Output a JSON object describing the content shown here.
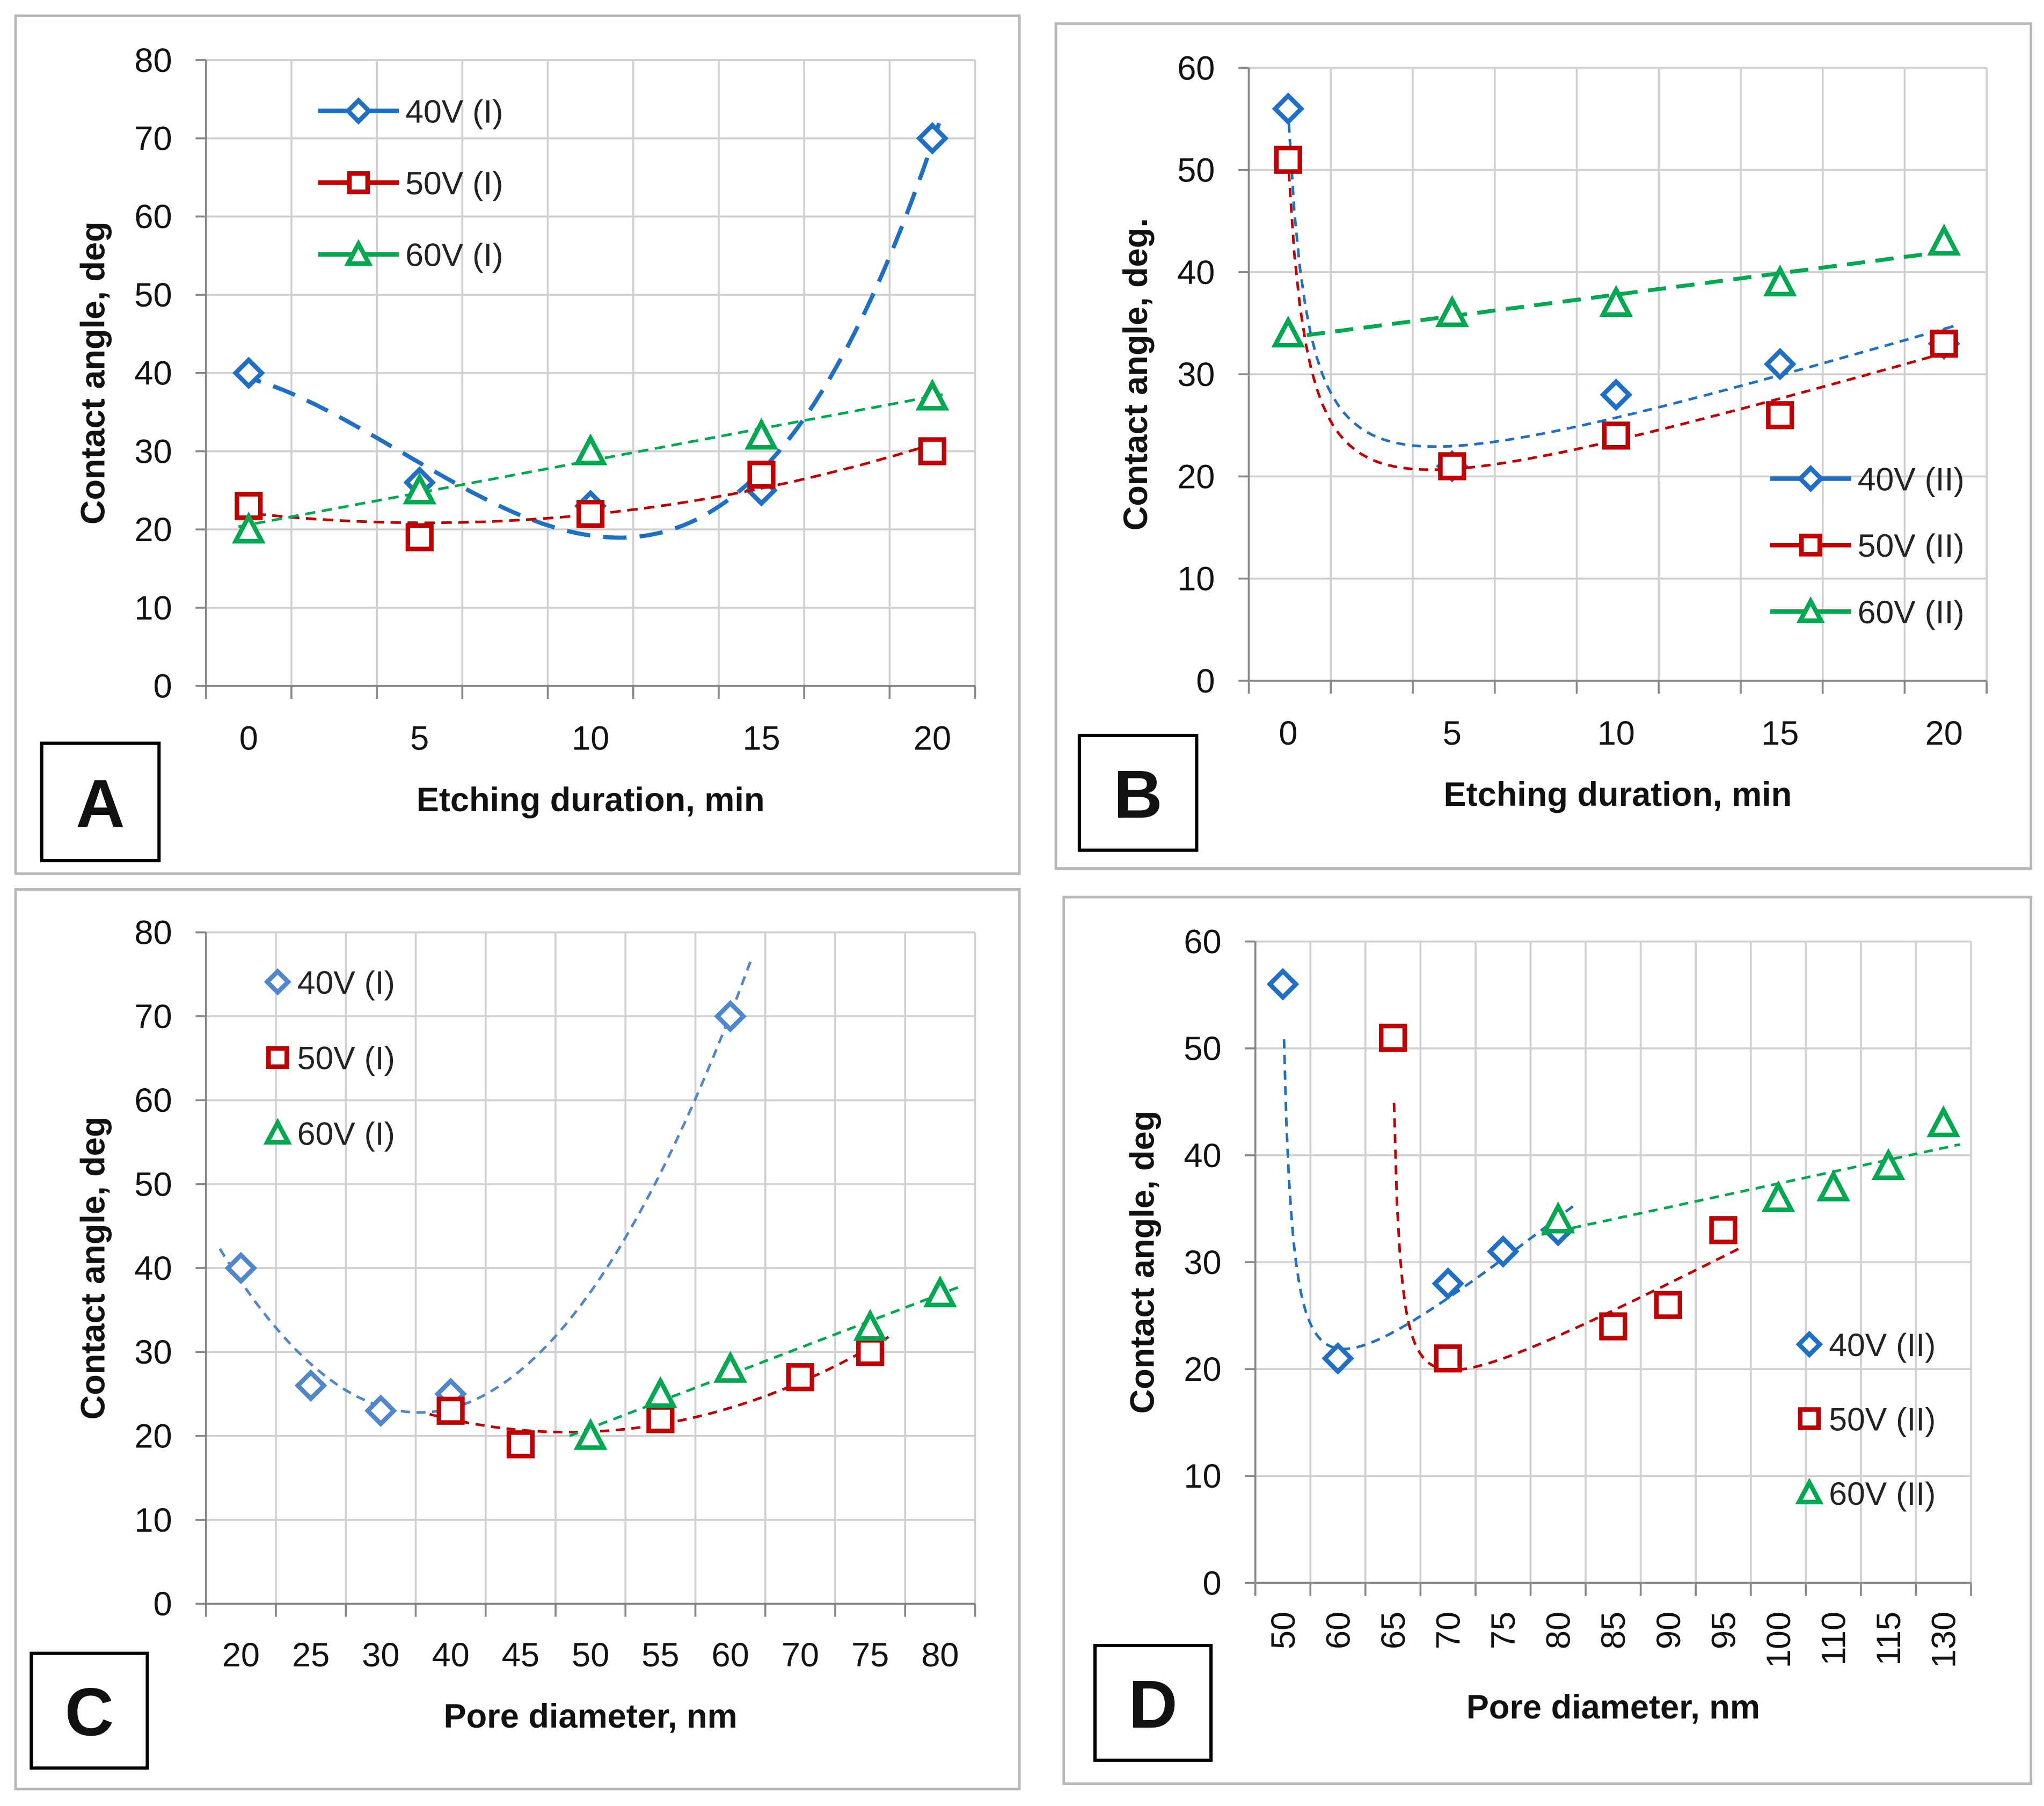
{
  "chart_data": [
    {
      "panel": "A",
      "type": "scatter",
      "x_type": "numeric",
      "xlabel": "Etching duration, min",
      "ylabel": "Contact angle, deg",
      "xlim": [
        -1.25,
        21.25
      ],
      "ylim": [
        0,
        80
      ],
      "x_ticks": [
        0,
        5,
        10,
        15,
        20
      ],
      "y_ticks": [
        0,
        10,
        20,
        30,
        40,
        50,
        60,
        70,
        80
      ],
      "grid": true,
      "legend_position": "top-left",
      "series": [
        {
          "name": "40V (I)",
          "color": "#1f6fc5",
          "marker": "diamond",
          "x": [
            0,
            5,
            10,
            15,
            20
          ],
          "y": [
            40,
            26,
            23,
            25,
            70
          ],
          "trend": {
            "type": "poly",
            "degree": 3
          }
        },
        {
          "name": "50V (I)",
          "color": "#c00000",
          "marker": "square",
          "x": [
            0,
            5,
            10,
            15,
            20
          ],
          "y": [
            23,
            19,
            22,
            27,
            30
          ],
          "trend": {
            "type": "poly",
            "degree": 2
          }
        },
        {
          "name": "60V (I)",
          "color": "#00a84f",
          "marker": "triangle",
          "x": [
            0,
            5,
            10,
            15,
            20
          ],
          "y": [
            20,
            25,
            30,
            32,
            37
          ],
          "trend": {
            "type": "poly",
            "degree": 1
          }
        }
      ]
    },
    {
      "panel": "B",
      "type": "scatter",
      "x_type": "numeric",
      "xlabel": "Etching duration, min",
      "ylabel": "Contact angle, deg.",
      "xlim": [
        -1.2,
        21.3
      ],
      "ylim": [
        0,
        60
      ],
      "x_ticks": [
        0,
        5,
        10,
        15,
        20
      ],
      "y_ticks": [
        0,
        10,
        20,
        30,
        40,
        50,
        60
      ],
      "grid": true,
      "legend_position": "bottom-right",
      "series": [
        {
          "name": "40V (II)",
          "color": "#1f6fc5",
          "marker": "diamond",
          "x": [
            0,
            5,
            10,
            15,
            20
          ],
          "y": [
            56,
            21,
            28,
            31,
            33
          ],
          "trend": {
            "type": "hyperbolic",
            "shift": 0.6
          }
        },
        {
          "name": "50V (II)",
          "color": "#c00000",
          "marker": "square",
          "x": [
            0,
            5,
            10,
            15,
            20
          ],
          "y": [
            51,
            21,
            24,
            26,
            33
          ],
          "trend": {
            "type": "hyperbolic",
            "shift": 0.6
          }
        },
        {
          "name": "60V (II)",
          "color": "#00a84f",
          "marker": "triangle",
          "x": [
            0,
            5,
            10,
            15,
            20
          ],
          "y": [
            34,
            36,
            37,
            39,
            43
          ],
          "trend": {
            "type": "poly",
            "degree": 1
          }
        }
      ]
    },
    {
      "panel": "C",
      "type": "scatter",
      "x_type": "category",
      "xlabel": "Pore diameter, nm",
      "ylabel": "Contact angle, deg",
      "categories": [
        "20",
        "25",
        "30",
        "40",
        "45",
        "50",
        "55",
        "60",
        "70",
        "75",
        "80"
      ],
      "ylim": [
        0,
        80
      ],
      "y_ticks": [
        0,
        10,
        20,
        30,
        40,
        50,
        60,
        70,
        80
      ],
      "grid": true,
      "legend_position": "top-left",
      "series": [
        {
          "name": "40V (I)",
          "color": "#4f86cc",
          "marker": "diamond",
          "x": [
            "20",
            "25",
            "30",
            "40",
            "60"
          ],
          "y": [
            40,
            26,
            23,
            25,
            70
          ],
          "trend": {
            "type": "poly",
            "degree": 2
          }
        },
        {
          "name": "50V (I)",
          "color": "#c00000",
          "marker": "square",
          "x": [
            "40",
            "45",
            "55",
            "70",
            "75"
          ],
          "y": [
            23,
            19,
            22,
            27,
            30
          ],
          "trend": {
            "type": "poly",
            "degree": 2
          }
        },
        {
          "name": "60V (I)",
          "color": "#00a84f",
          "marker": "triangle",
          "x": [
            "50",
            "55",
            "60",
            "75",
            "80"
          ],
          "y": [
            20,
            25,
            28,
            33,
            37
          ],
          "trend": {
            "type": "poly",
            "degree": 1
          }
        }
      ]
    },
    {
      "panel": "D",
      "type": "scatter",
      "x_type": "category",
      "xlabel": "Pore diameter, nm",
      "ylabel": "Contact angle, deg",
      "categories": [
        "50",
        "60",
        "65",
        "70",
        "75",
        "80",
        "85",
        "90",
        "95",
        "100",
        "110",
        "115",
        "130"
      ],
      "ylim": [
        0,
        60
      ],
      "y_ticks": [
        0,
        10,
        20,
        30,
        40,
        50,
        60
      ],
      "grid": true,
      "legend_position": "bottom-right",
      "series": [
        {
          "name": "40V (II)",
          "color": "#1f6fc5",
          "marker": "diamond",
          "x": [
            "50",
            "60",
            "70",
            "75",
            "80"
          ],
          "y": [
            56,
            21,
            28,
            31,
            33
          ],
          "trend": {
            "type": "hyperbolic",
            "shift": 0.15
          }
        },
        {
          "name": "50V (II)",
          "color": "#c00000",
          "marker": "square",
          "x": [
            "65",
            "70",
            "85",
            "90",
            "95"
          ],
          "y": [
            51,
            21,
            24,
            26,
            33
          ],
          "trend": {
            "type": "hyperbolic",
            "shift": 0.1
          }
        },
        {
          "name": "60V (II)",
          "color": "#00a84f",
          "marker": "triangle",
          "x": [
            "80",
            "100",
            "110",
            "115",
            "130"
          ],
          "y": [
            34,
            36,
            37,
            39,
            43
          ],
          "trend": {
            "type": "poly",
            "degree": 1
          }
        }
      ]
    }
  ]
}
